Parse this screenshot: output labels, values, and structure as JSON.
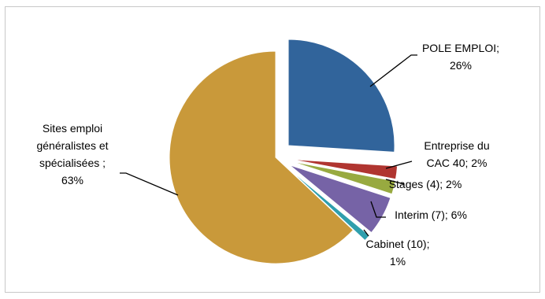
{
  "chart_data": {
    "type": "pie",
    "title": "",
    "legend": "none",
    "slices": [
      {
        "name": "POLE EMPLOI",
        "value": 26,
        "color": "#31649b",
        "label_lines": [
          "POLE EMPLOI;",
          "26%"
        ]
      },
      {
        "name": "Entreprise du CAC 40",
        "value": 2,
        "color": "#b03530",
        "label_lines": [
          "Entreprise du",
          "CAC 40; 2%"
        ]
      },
      {
        "name": "Stages (4)",
        "value": 2,
        "color": "#98aa40",
        "label_lines": [
          "Stages (4); 2%"
        ]
      },
      {
        "name": "Interim (7)",
        "value": 6,
        "color": "#7663a6",
        "label_lines": [
          "Interim (7); 6%"
        ]
      },
      {
        "name": "Cabinet (10)",
        "value": 1,
        "color": "#2f9fad",
        "label_lines": [
          "Cabinet (10);",
          "1%"
        ]
      },
      {
        "name": "Sites emploi généralistes et spécialisées",
        "value": 63,
        "color": "#c9993a",
        "label_lines": [
          "Sites emploi",
          "généralistes et",
          "spécialisées ;",
          "63%"
        ]
      }
    ]
  }
}
